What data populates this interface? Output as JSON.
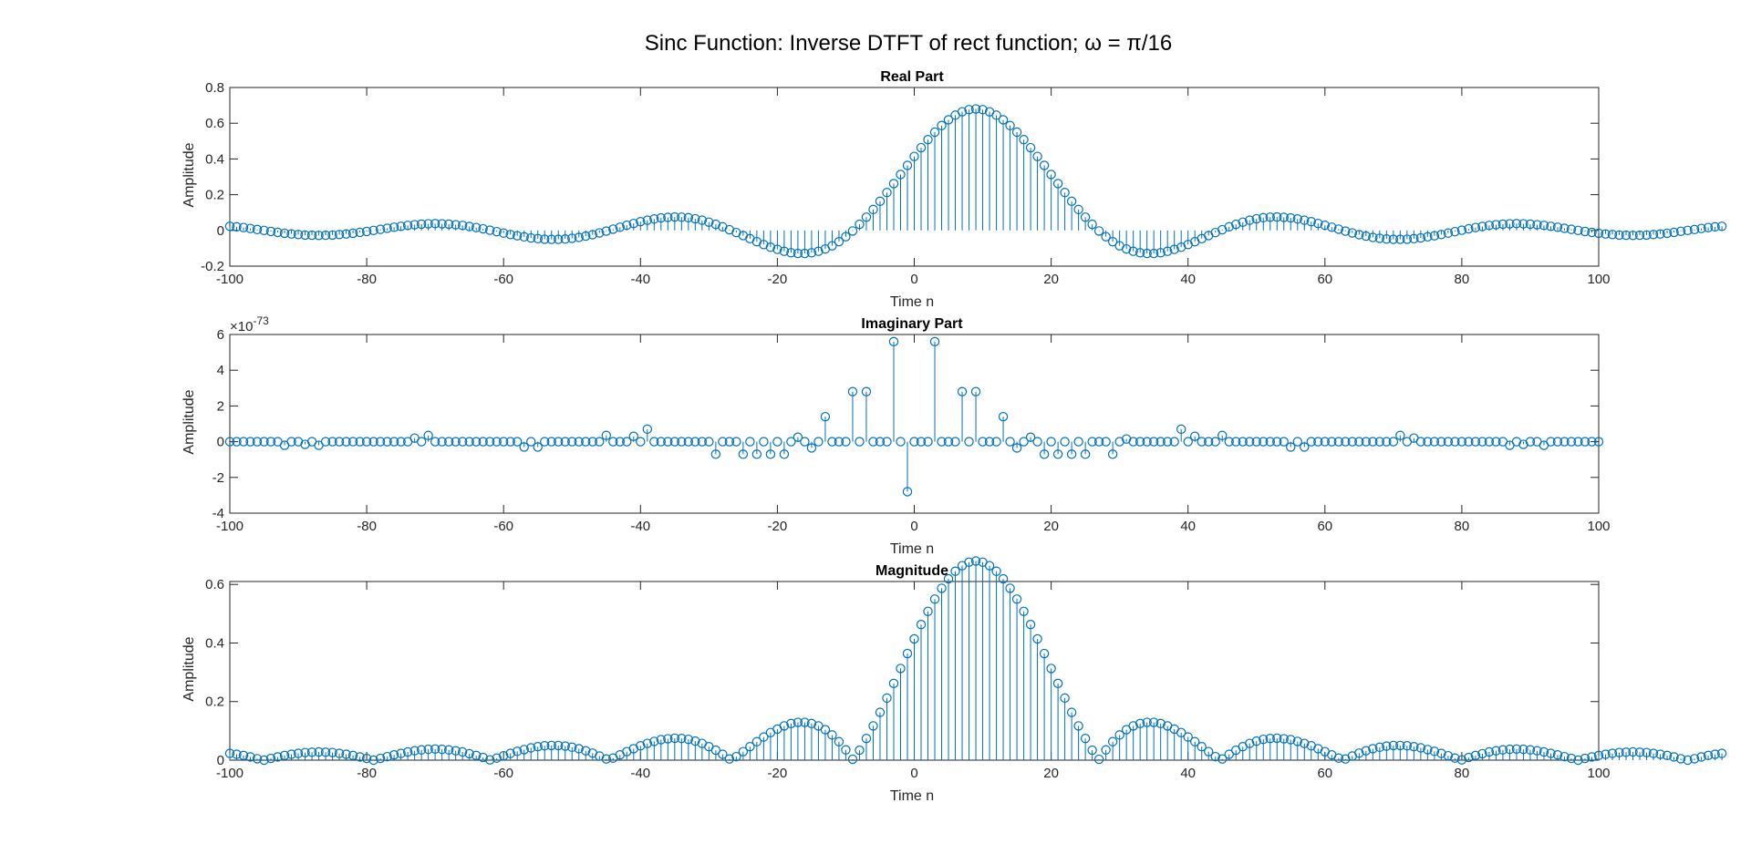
{
  "figure": {
    "suptitle": "Sinc Function: Inverse DTFT of rect function; ω = π/16"
  },
  "colors": {
    "stem": "#0072BD",
    "axes": "#262626",
    "background": "#ffffff"
  },
  "chart_data": [
    {
      "type": "stem",
      "title": "Real Part",
      "xlabel": "Time n",
      "ylabel": "Amplitude",
      "xlim": [
        -100,
        100
      ],
      "ylim": [
        -0.2,
        0.8
      ],
      "xticks": [
        -100,
        -80,
        -60,
        -40,
        -20,
        0,
        20,
        40,
        60,
        80,
        100
      ],
      "yticks": [
        -0.2,
        0,
        0.2,
        0.4,
        0.6,
        0.8
      ],
      "ytick_labels": [
        "-0.2",
        "0",
        "0.2",
        "0.4",
        "0.6",
        "0.8"
      ],
      "x_range": [
        -100,
        100
      ],
      "values": [
        0.023,
        0.02,
        0.016,
        0.011,
        0.005,
        0,
        -0.006,
        -0.011,
        -0.016,
        -0.02,
        -0.023,
        -0.026,
        -0.027,
        -0.028,
        -0.027,
        -0.026,
        -0.023,
        -0.02,
        -0.016,
        -0.011,
        -0.006,
        0,
        0.006,
        0.012,
        0.018,
        0.023,
        0.028,
        0.032,
        0.035,
        0.037,
        0.038,
        0.037,
        0.035,
        0.032,
        0.028,
        0.022,
        0.016,
        0.009,
        0.001,
        -0.007,
        -0.015,
        -0.023,
        -0.03,
        -0.036,
        -0.042,
        -0.046,
        -0.049,
        -0.05,
        -0.05,
        -0.048,
        -0.044,
        -0.039,
        -0.032,
        -0.024,
        -0.014,
        -0.004,
        0.007,
        0.018,
        0.029,
        0.039,
        0.049,
        0.057,
        0.064,
        0.07,
        0.073,
        0.075,
        0.074,
        0.071,
        0.065,
        0.057,
        0.046,
        0.034,
        0.02,
        0.004,
        -0.012,
        -0.029,
        -0.046,
        -0.063,
        -0.079,
        -0.094,
        -0.106,
        -0.117,
        -0.125,
        -0.129,
        -0.129,
        -0.125,
        -0.117,
        -0.104,
        -0.086,
        -0.063,
        -0.035,
        -0.003,
        0.034,
        0.074,
        0.117,
        0.163,
        0.212,
        0.262,
        0.313,
        0.364,
        0.414,
        0.463,
        0.508,
        0.55,
        0.587,
        0.619,
        0.645,
        0.664,
        0.676,
        0.68,
        0.676,
        0.664,
        0.645,
        0.619,
        0.587,
        0.55,
        0.508,
        0.463,
        0.414,
        0.364,
        0.313,
        0.262,
        0.212,
        0.163,
        0.117,
        0.074,
        0.034,
        -0.003,
        -0.035,
        -0.063,
        -0.086,
        -0.104,
        -0.117,
        -0.125,
        -0.129,
        -0.129,
        -0.125,
        -0.117,
        -0.106,
        -0.094,
        -0.079,
        -0.063,
        -0.046,
        -0.029,
        -0.012,
        0.004,
        0.02,
        0.034,
        0.046,
        0.057,
        0.065,
        0.071,
        0.074,
        0.075,
        0.073,
        0.07,
        0.064,
        0.057,
        0.049,
        0.039,
        0.029,
        0.018,
        0.007,
        -0.004,
        -0.014,
        -0.024,
        -0.032,
        -0.039,
        -0.044,
        -0.048,
        -0.05,
        -0.05,
        -0.049,
        -0.046,
        -0.042,
        -0.036,
        -0.03,
        -0.023,
        -0.015,
        -0.007,
        0.001,
        0.009,
        0.016,
        0.022,
        0.028,
        0.032,
        0.035,
        0.037,
        0.038,
        0.037,
        0.035,
        0.032,
        0.028,
        0.023,
        0.018,
        0.012,
        0.006,
        0,
        -0.006,
        -0.011,
        -0.016,
        -0.02,
        -0.023,
        -0.026,
        -0.027,
        -0.028,
        -0.027,
        -0.026,
        -0.023,
        -0.02,
        -0.016,
        -0.011,
        -0.005,
        0,
        0.005,
        0.011,
        0.016,
        0.02,
        0.023
      ]
    },
    {
      "type": "stem",
      "title": "Imaginary Part",
      "xlabel": "Time n",
      "ylabel": "Amplitude",
      "exponent_label": "×10",
      "exponent_power": "-73",
      "xlim": [
        -100,
        100
      ],
      "ylim": [
        -4,
        6
      ],
      "xticks": [
        -100,
        -80,
        -60,
        -40,
        -20,
        0,
        20,
        40,
        60,
        80,
        100
      ],
      "yticks": [
        -4,
        -2,
        0,
        2,
        4,
        6
      ],
      "ytick_labels": [
        "-4",
        "-2",
        "0",
        "2",
        "4",
        "6"
      ],
      "x_range": [
        -100,
        100
      ],
      "nonzero_points": [
        {
          "x": -92,
          "y": -0.2
        },
        {
          "x": -89,
          "y": -0.15
        },
        {
          "x": -87,
          "y": -0.2
        },
        {
          "x": -73,
          "y": 0.2
        },
        {
          "x": -71,
          "y": 0.35
        },
        {
          "x": -57,
          "y": -0.3
        },
        {
          "x": -55,
          "y": -0.3
        },
        {
          "x": -45,
          "y": 0.35
        },
        {
          "x": -41,
          "y": 0.3
        },
        {
          "x": -39,
          "y": 0.7
        },
        {
          "x": -29,
          "y": -0.7
        },
        {
          "x": -25,
          "y": -0.7
        },
        {
          "x": -23,
          "y": -0.7
        },
        {
          "x": -21,
          "y": -0.7
        },
        {
          "x": -19,
          "y": -0.7
        },
        {
          "x": -17,
          "y": 0.25
        },
        {
          "x": -15,
          "y": -0.35
        },
        {
          "x": -13,
          "y": 1.4
        },
        {
          "x": -9,
          "y": 2.8
        },
        {
          "x": -7,
          "y": 2.8
        },
        {
          "x": -3,
          "y": 5.6
        },
        {
          "x": -1,
          "y": -2.8
        },
        {
          "x": 3,
          "y": 5.6
        },
        {
          "x": 7,
          "y": 2.8
        },
        {
          "x": 9,
          "y": 2.8
        },
        {
          "x": 13,
          "y": 1.4
        },
        {
          "x": 15,
          "y": -0.35
        },
        {
          "x": 17,
          "y": 0.25
        },
        {
          "x": 19,
          "y": -0.7
        },
        {
          "x": 21,
          "y": -0.7
        },
        {
          "x": 23,
          "y": -0.7
        },
        {
          "x": 25,
          "y": -0.7
        },
        {
          "x": 29,
          "y": -0.7
        },
        {
          "x": 31,
          "y": 0.15
        },
        {
          "x": 39,
          "y": 0.7
        },
        {
          "x": 41,
          "y": 0.3
        },
        {
          "x": 45,
          "y": 0.35
        },
        {
          "x": 55,
          "y": -0.3
        },
        {
          "x": 57,
          "y": -0.3
        },
        {
          "x": 71,
          "y": 0.35
        },
        {
          "x": 73,
          "y": 0.2
        },
        {
          "x": 87,
          "y": -0.2
        },
        {
          "x": 89,
          "y": -0.15
        },
        {
          "x": 92,
          "y": -0.2
        }
      ]
    },
    {
      "type": "stem",
      "title": "Magnitude",
      "xlabel": "Time n",
      "ylabel": "Amplitude",
      "xlim": [
        -100,
        100
      ],
      "ylim": [
        0,
        0.61
      ],
      "xticks": [
        -100,
        -80,
        -60,
        -40,
        -20,
        0,
        20,
        40,
        60,
        80,
        100
      ],
      "yticks": [
        0,
        0.2,
        0.4,
        0.6
      ],
      "ytick_labels": [
        "0",
        "0.2",
        "0.4",
        "0.6"
      ],
      "x_range": [
        -100,
        100
      ],
      "values_from": "absolute value of Real Part"
    }
  ]
}
